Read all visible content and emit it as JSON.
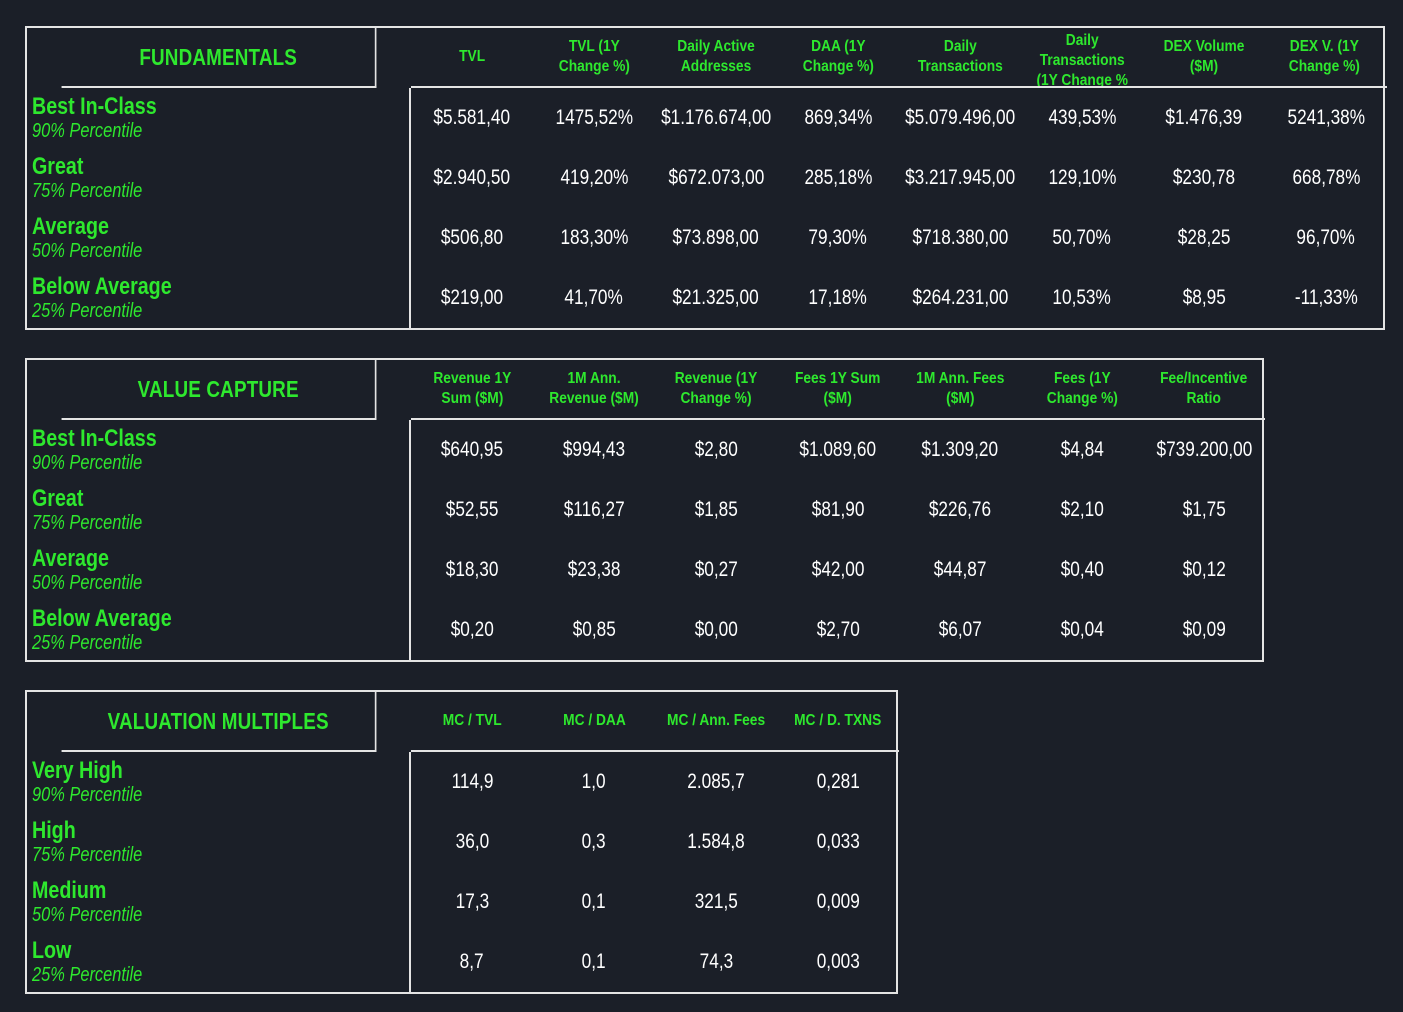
{
  "tables": [
    {
      "title": "FUNDAMENTALS",
      "columns": [
        "TVL",
        "TVL (1Y\nChange %)",
        "Daily Active\nAddresses",
        "DAA (1Y\nChange %)",
        "Daily\nTransactions",
        "Daily\nTransactions\n(1Y Change %",
        "DEX Volume\n($M)",
        "DEX V. (1Y\nChange %)"
      ],
      "rows": [
        {
          "name": "Best In-Class",
          "sub": "90% Percentile",
          "values": [
            "$5.581,40",
            "1475,52%",
            "$1.176.674,00",
            "869,34%",
            "$5.079.496,00",
            "439,53%",
            "$1.476,39",
            "5241,38%"
          ]
        },
        {
          "name": "Great",
          "sub": "75% Percentile",
          "values": [
            "$2.940,50",
            "419,20%",
            "$672.073,00",
            "285,18%",
            "$3.217.945,00",
            "129,10%",
            "$230,78",
            "668,78%"
          ]
        },
        {
          "name": "Average",
          "sub": "50% Percentile",
          "values": [
            "$506,80",
            "183,30%",
            "$73.898,00",
            "79,30%",
            "$718.380,00",
            "50,70%",
            "$28,25",
            "96,70%"
          ]
        },
        {
          "name": "Below Average",
          "sub": "25% Percentile",
          "values": [
            "$219,00",
            "41,70%",
            "$21.325,00",
            "17,18%",
            "$264.231,00",
            "10,53%",
            "$8,95",
            "-11,33%"
          ]
        }
      ]
    },
    {
      "title": "VALUE CAPTURE",
      "columns": [
        "Revenue 1Y\nSum ($M)",
        "1M Ann.\nRevenue ($M)",
        "Revenue (1Y\nChange %)",
        "Fees 1Y Sum\n($M)",
        "1M Ann. Fees\n($M)",
        "Fees (1Y\nChange %)",
        "Fee/Incentive\nRatio"
      ],
      "rows": [
        {
          "name": "Best In-Class",
          "sub": "90% Percentile",
          "values": [
            "$640,95",
            "$994,43",
            "$2,80",
            "$1.089,60",
            "$1.309,20",
            "$4,84",
            "$739.200,00"
          ]
        },
        {
          "name": "Great",
          "sub": "75% Percentile",
          "values": [
            "$52,55",
            "$116,27",
            "$1,85",
            "$81,90",
            "$226,76",
            "$2,10",
            "$1,75"
          ]
        },
        {
          "name": "Average",
          "sub": "50% Percentile",
          "values": [
            "$18,30",
            "$23,38",
            "$0,27",
            "$42,00",
            "$44,87",
            "$0,40",
            "$0,12"
          ]
        },
        {
          "name": "Below Average",
          "sub": "25% Percentile",
          "values": [
            "$0,20",
            "$0,85",
            "$0,00",
            "$2,70",
            "$6,07",
            "$0,04",
            "$0,09"
          ]
        }
      ]
    },
    {
      "title": "VALUATION MULTIPLES",
      "columns": [
        "MC / TVL",
        "MC /  DAA",
        "MC / Ann. Fees",
        "MC / D. TXNS"
      ],
      "rows": [
        {
          "name": "Very High",
          "sub": "90% Percentile",
          "values": [
            "114,9",
            "1,0",
            "2.085,7",
            "0,281"
          ]
        },
        {
          "name": "High",
          "sub": "75% Percentile",
          "values": [
            "36,0",
            "0,3",
            "1.584,8",
            "0,033"
          ]
        },
        {
          "name": "Medium",
          "sub": "50% Percentile",
          "values": [
            "17,3",
            "0,1",
            "321,5",
            "0,009"
          ]
        },
        {
          "name": "Low",
          "sub": "25% Percentile",
          "values": [
            "8,7",
            "0,1",
            "74,3",
            "0,003"
          ]
        }
      ]
    }
  ],
  "colors": {
    "background": "#1b1f28",
    "accent": "#2ee82e",
    "text": "#ffffff",
    "border": "#e4e4e4"
  }
}
